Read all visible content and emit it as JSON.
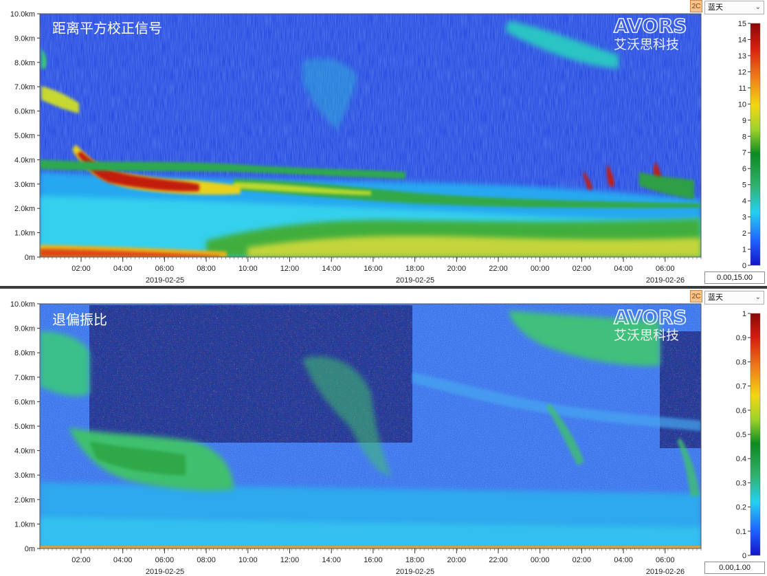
{
  "panels": [
    {
      "title": "距离平方校正信号",
      "logo": {
        "brand": "AVORS",
        "name_cn": "艾沃思科技"
      },
      "side_button": "2C",
      "colormap": "蓝天",
      "range_text": "0.00,15.00",
      "chart_data": {
        "type": "heatmap",
        "y_ticks": [
          "0m",
          "1.0km",
          "2.0km",
          "3.0km",
          "4.0km",
          "5.0km",
          "6.0km",
          "7.0km",
          "8.0km",
          "9.0km",
          "10.0km"
        ],
        "ylim": [
          0,
          10
        ],
        "x_ticks": [
          "02:00",
          "04:00",
          "06:00",
          "08:00",
          "10:00",
          "12:00",
          "14:00",
          "16:00",
          "18:00",
          "20:00",
          "22:00",
          "00:00",
          "02:00",
          "04:00",
          "06:00"
        ],
        "x_dates": [
          "2019-02-25",
          "2019-02-25",
          "2019-02-26"
        ],
        "colorbar_ticks": [
          "15",
          "14",
          "13",
          "12",
          "11",
          "10",
          "9",
          "8",
          "7",
          "6",
          "5",
          "4",
          "3",
          "2",
          "1",
          "0"
        ],
        "value_range": [
          0,
          15
        ]
      }
    },
    {
      "title": "退偏振比",
      "logo": {
        "brand": "AVORS",
        "name_cn": "艾沃思科技"
      },
      "side_button": "2C",
      "colormap": "蓝天",
      "range_text": "0.00,1.00",
      "chart_data": {
        "type": "heatmap",
        "y_ticks": [
          "0m",
          "1.0km",
          "2.0km",
          "3.0km",
          "4.0km",
          "5.0km",
          "6.0km",
          "7.0km",
          "8.0km",
          "9.0km",
          "10.0km"
        ],
        "ylim": [
          0,
          10
        ],
        "x_ticks": [
          "02:00",
          "04:00",
          "06:00",
          "08:00",
          "10:00",
          "12:00",
          "14:00",
          "16:00",
          "18:00",
          "20:00",
          "22:00",
          "00:00",
          "02:00",
          "04:00",
          "06:00"
        ],
        "x_dates": [
          "2019-02-25",
          "2019-02-25",
          "2019-02-26"
        ],
        "colorbar_ticks": [
          "1",
          "0.9",
          "0.8",
          "0.7",
          "0.6",
          "0.5",
          "0.4",
          "0.3",
          "0.2",
          "0.1",
          "0"
        ],
        "value_range": [
          0,
          1
        ]
      }
    }
  ]
}
